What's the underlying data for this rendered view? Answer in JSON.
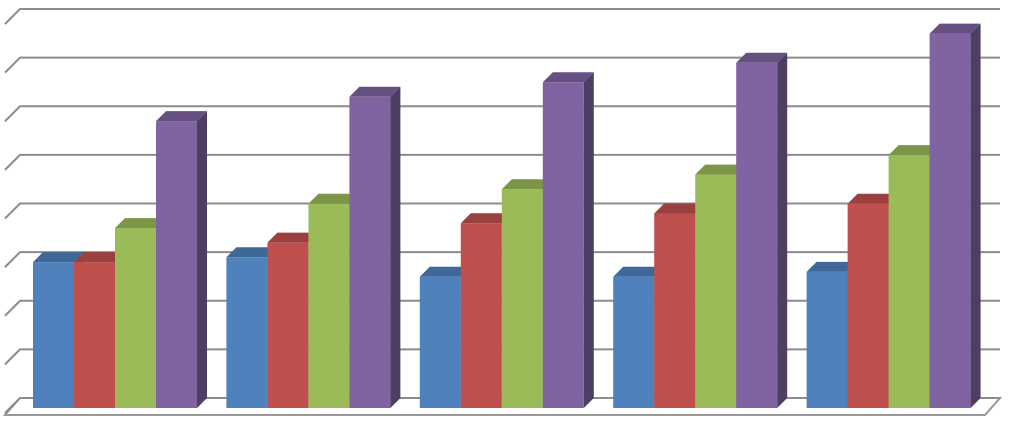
{
  "chart_data": {
    "type": "bar3d",
    "categories": [
      null,
      null,
      null,
      null,
      null
    ],
    "series": [
      {
        "color": "#4f81bd",
        "values": [
          3.0,
          3.1,
          2.7,
          2.7,
          2.8
        ]
      },
      {
        "color": "#c0504d",
        "values": [
          3.0,
          3.4,
          3.8,
          4.0,
          4.2
        ]
      },
      {
        "color": "#9bbb59",
        "values": [
          3.7,
          4.2,
          4.5,
          4.8,
          5.2
        ]
      },
      {
        "color": "#8064a2",
        "values": [
          5.9,
          6.4,
          6.7,
          7.1,
          7.7
        ]
      }
    ],
    "ylim": [
      0,
      8
    ],
    "yticks": [
      0,
      1,
      2,
      3,
      4,
      5,
      6,
      7,
      8
    ],
    "grid": true
  }
}
